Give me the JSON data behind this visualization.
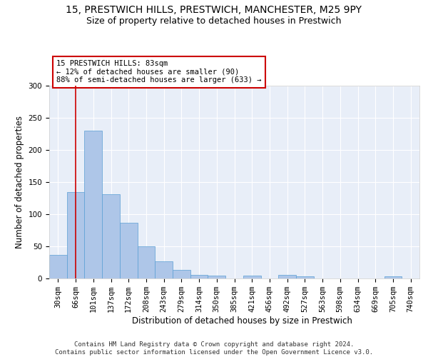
{
  "title_line1": "15, PRESTWICH HILLS, PRESTWICH, MANCHESTER, M25 9PY",
  "title_line2": "Size of property relative to detached houses in Prestwich",
  "xlabel": "Distribution of detached houses by size in Prestwich",
  "ylabel": "Number of detached properties",
  "categories": [
    "30sqm",
    "66sqm",
    "101sqm",
    "137sqm",
    "172sqm",
    "208sqm",
    "243sqm",
    "279sqm",
    "314sqm",
    "350sqm",
    "385sqm",
    "421sqm",
    "456sqm",
    "492sqm",
    "527sqm",
    "563sqm",
    "598sqm",
    "634sqm",
    "669sqm",
    "705sqm",
    "740sqm"
  ],
  "values": [
    37,
    135,
    230,
    131,
    87,
    50,
    27,
    13,
    6,
    4,
    0,
    5,
    0,
    6,
    3,
    0,
    0,
    0,
    0,
    3,
    0
  ],
  "bar_color": "#aec6e8",
  "bar_edge_color": "#5a9fd4",
  "background_color": "#e8eef8",
  "grid_color": "#ffffff",
  "vline_color": "#cc0000",
  "annotation_text": "15 PRESTWICH HILLS: 83sqm\n← 12% of detached houses are smaller (90)\n88% of semi-detached houses are larger (633) →",
  "annotation_box_color": "#ffffff",
  "annotation_box_edge": "#cc0000",
  "ylim": [
    0,
    300
  ],
  "yticks": [
    0,
    50,
    100,
    150,
    200,
    250,
    300
  ],
  "footer_text": "Contains HM Land Registry data © Crown copyright and database right 2024.\nContains public sector information licensed under the Open Government Licence v3.0.",
  "title_fontsize": 10,
  "subtitle_fontsize": 9,
  "axis_label_fontsize": 8.5,
  "tick_fontsize": 7.5,
  "annotation_fontsize": 7.5,
  "footer_fontsize": 6.5
}
